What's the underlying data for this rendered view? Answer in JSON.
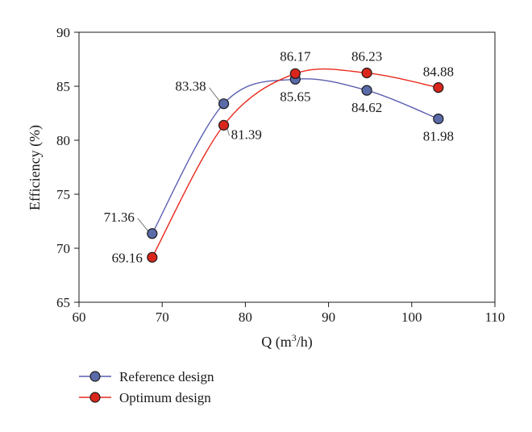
{
  "chart_data": {
    "type": "line",
    "xlabel": "Q (m",
    "xlabel_sup": "3",
    "xlabel_end": "/h)",
    "ylabel": "Efficiency (%)",
    "xlim": [
      60,
      110
    ],
    "ylim": [
      65,
      90
    ],
    "xticks": [
      "60",
      "70",
      "80",
      "90",
      "100",
      "110"
    ],
    "yticks": [
      "65",
      "70",
      "75",
      "80",
      "85",
      "90"
    ],
    "grid": false,
    "legend_position": "bottom-left",
    "series": [
      {
        "name": "Reference design",
        "color": "#5a5fb0",
        "marker_fill": "#5b6aa8",
        "x": [
          68.8,
          77.4,
          86.0,
          94.6,
          103.2
        ],
        "y": [
          71.36,
          83.38,
          85.65,
          84.62,
          81.98
        ],
        "labels": [
          "71.36",
          "83.38",
          "85.65",
          "84.62",
          "81.98"
        ]
      },
      {
        "name": "Optimum design",
        "color": "#e8291c",
        "marker_fill": "#d9261c",
        "x": [
          68.8,
          77.4,
          86.0,
          94.6,
          103.2
        ],
        "y": [
          69.16,
          81.39,
          86.17,
          86.23,
          84.88
        ],
        "labels": [
          "69.16",
          "81.39",
          "86.17",
          "86.23",
          "84.88"
        ]
      }
    ]
  }
}
